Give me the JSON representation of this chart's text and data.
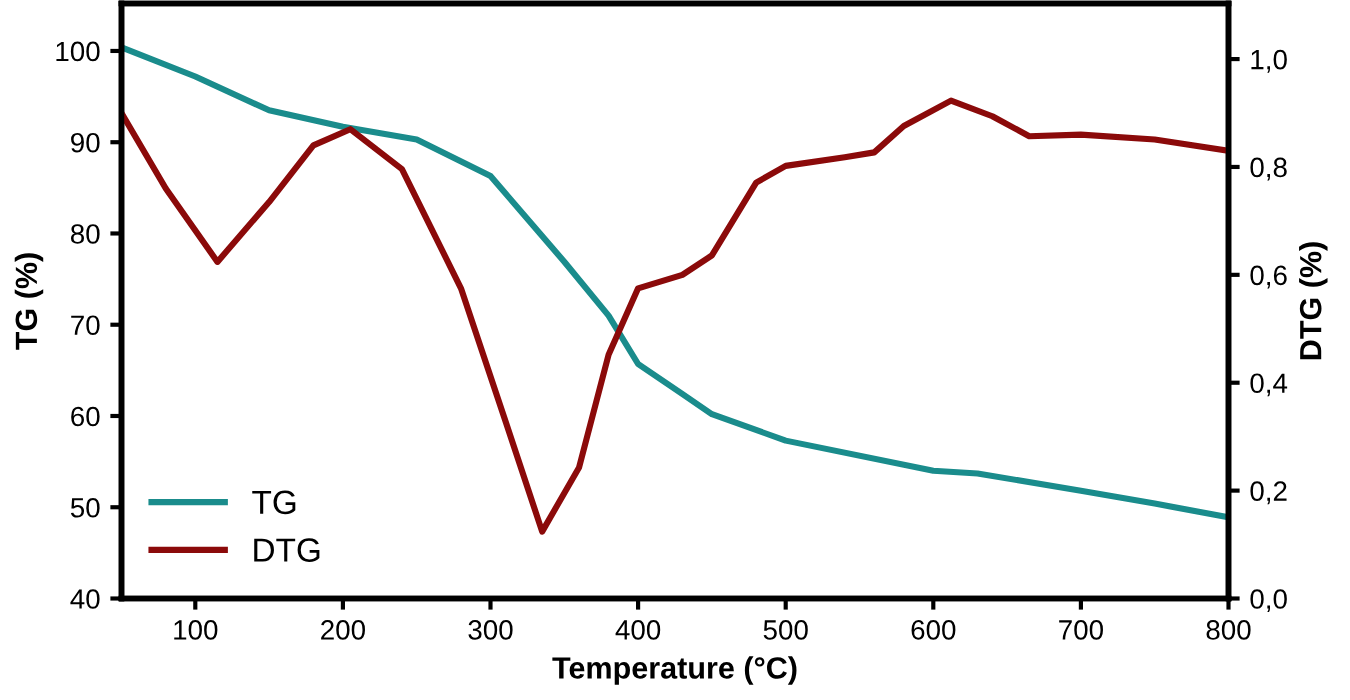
{
  "chart_data": {
    "type": "line",
    "xlabel": "Temperature (°C)",
    "ylabel": "TG (%)",
    "y2label": "DTG (%)",
    "xlim": [
      50,
      800
    ],
    "xticks": [
      100,
      200,
      300,
      400,
      500,
      600,
      700,
      800
    ],
    "ylim": [
      40,
      105.2
    ],
    "yticks": [
      40,
      50,
      60,
      70,
      80,
      90,
      100
    ],
    "y2lim": [
      0,
      1.103
    ],
    "y2ticks": [
      {
        "value": 0,
        "label": "0,0"
      },
      {
        "value": 0.2,
        "label": "0,2"
      },
      {
        "value": 0.4,
        "label": "0,4"
      },
      {
        "value": 0.6,
        "label": "0,6"
      },
      {
        "value": 0.8,
        "label": "0,8"
      },
      {
        "value": 1.0,
        "label": "1,0"
      }
    ],
    "legend": "bottom left",
    "grid": false,
    "series": [
      {
        "name": "TG",
        "color": "#1a8c8c",
        "x": [
          50,
          100,
          150,
          200,
          250,
          300,
          350,
          380,
          400,
          430,
          450,
          500,
          600,
          630,
          700,
          750,
          800
        ],
        "values": [
          100.4,
          97.2,
          93.5,
          91.7,
          90.3,
          86.3,
          76.9,
          71,
          65.7,
          62.4,
          60.2,
          57.3,
          54.0,
          53.7,
          51.8,
          50.4,
          48.9
        ]
      },
      {
        "name": "DTG",
        "color": "#8b0a0a",
        "axis": "y2",
        "x": [
          50,
          80,
          115,
          150,
          180,
          205,
          240,
          280,
          310,
          335,
          360,
          380,
          400,
          430,
          450,
          480,
          500,
          540,
          560,
          580,
          612,
          640,
          665,
          700,
          750,
          800
        ],
        "values": [
          0.9,
          0.76,
          0.624,
          0.735,
          0.84,
          0.87,
          0.796,
          0.575,
          0.33,
          0.124,
          0.243,
          0.452,
          0.575,
          0.6,
          0.636,
          0.771,
          0.802,
          0.818,
          0.827,
          0.876,
          0.923,
          0.894,
          0.857,
          0.86,
          0.851,
          0.83
        ]
      }
    ]
  }
}
